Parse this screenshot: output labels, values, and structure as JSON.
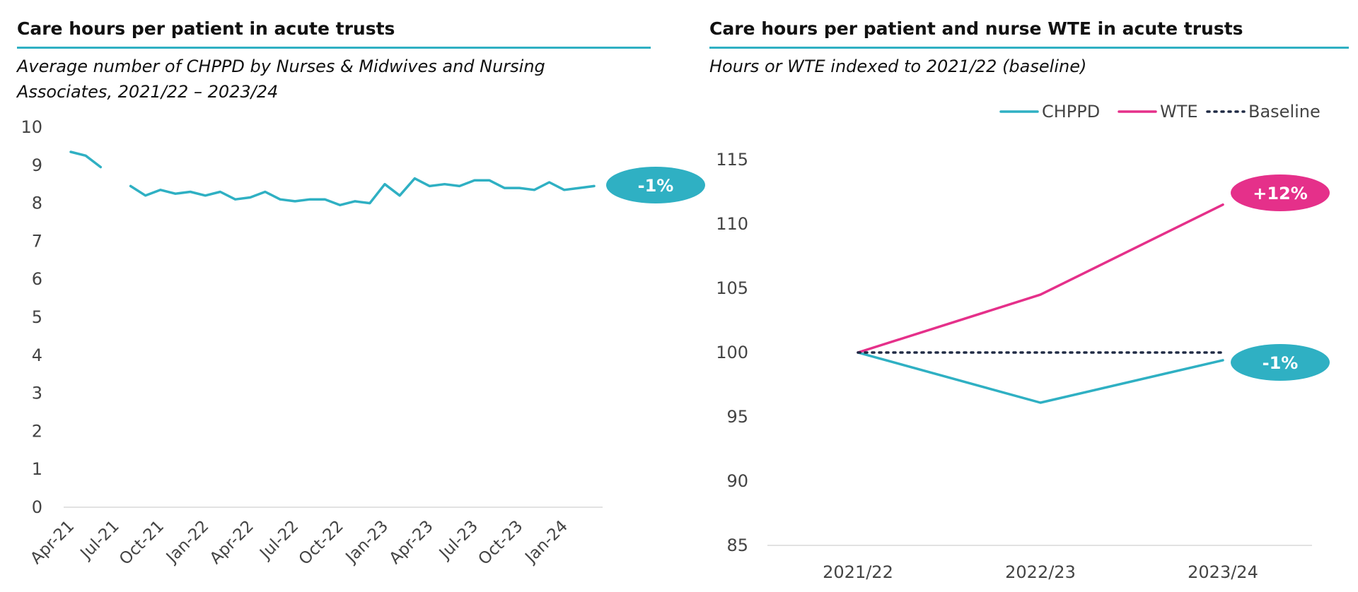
{
  "colors": {
    "chppd": "#2fb0c3",
    "wte": "#e5308a",
    "baseline": "#1f2a44",
    "rule": "#2fb0c3",
    "axis": "#d9d9d9"
  },
  "chart_data": [
    {
      "type": "line",
      "title": "Care hours per patient in acute trusts",
      "subtitle_lines": [
        "Average number of CHPPD by Nurses & Midwives and Nursing",
        "Associates, 2021/22 – 2023/24"
      ],
      "ylim": [
        0,
        10
      ],
      "yticks": [
        "10",
        "9",
        "8",
        "7",
        "6",
        "5",
        "4",
        "3",
        "2",
        "1",
        "0"
      ],
      "x_tick_labels": [
        "Apr-21",
        "Jul-21",
        "Oct-21",
        "Jan-22",
        "Apr-22",
        "Jul-22",
        "Oct-22",
        "Jan-23",
        "Apr-23",
        "Jul-23",
        "Oct-23",
        "Jan-24"
      ],
      "series": [
        {
          "values": [
            9.35,
            9.25,
            8.95,
            null,
            8.45,
            8.2,
            8.35,
            8.25,
            8.3,
            8.2,
            8.3,
            8.1,
            8.15,
            8.3,
            8.1,
            8.05,
            8.1,
            8.1,
            7.95,
            8.05,
            8.0,
            8.5,
            8.2,
            8.65,
            8.45,
            8.5,
            8.45,
            8.6,
            8.6,
            8.4,
            8.4,
            8.35,
            8.55,
            8.35,
            8.4,
            8.45
          ]
        }
      ],
      "annotation": "-1%"
    },
    {
      "type": "line",
      "title": "Care hours per patient and nurse WTE in acute trusts",
      "subtitle_lines": [
        "Hours or WTE indexed to 2021/22 (baseline)"
      ],
      "ylim": [
        85,
        115
      ],
      "yticks": [
        "115",
        "110",
        "105",
        "100",
        "95",
        "90",
        "85"
      ],
      "categories": [
        "2021/22",
        "2022/23",
        "2023/24"
      ],
      "legend_position": "top-right",
      "series": [
        {
          "name": "CHPPD",
          "values": [
            100,
            96.1,
            99.4
          ],
          "annotation": "-1%"
        },
        {
          "name": "WTE",
          "values": [
            100,
            104.5,
            111.5
          ],
          "annotation": "+12%"
        },
        {
          "name": "Baseline",
          "values": [
            100,
            100,
            100
          ]
        }
      ]
    }
  ]
}
